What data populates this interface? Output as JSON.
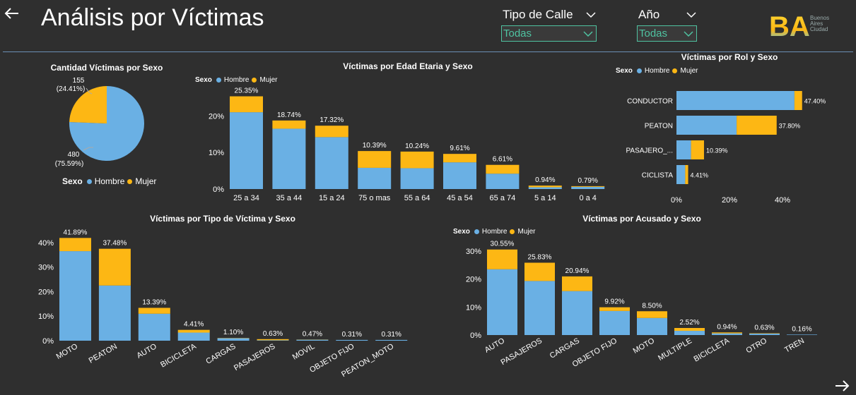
{
  "header": {
    "title": "Análisis por Víctimas",
    "slicers": [
      {
        "label": "Tipo de Calle",
        "value": "Todas"
      },
      {
        "label": "Año",
        "value": "Todas"
      }
    ],
    "logo": {
      "mark": "BA",
      "lines": [
        "Buenos",
        "Aires",
        "Ciudad"
      ]
    }
  },
  "colors": {
    "hombre": "#6ab0e4",
    "mujer": "#fdb714",
    "accent": "#4fc3a1",
    "bg": "#2f2f2f"
  },
  "charts": [
    {
      "id": "pie",
      "type": "pie",
      "title": "Cantidad Víctimas por Sexo",
      "legend_title": "Sexo",
      "legend": [
        "Hombre",
        "Mujer"
      ],
      "slices": [
        {
          "name": "Hombre",
          "value": 480,
          "pct": "75.59%"
        },
        {
          "name": "Mujer",
          "value": 155,
          "pct": "24.41%"
        }
      ]
    },
    {
      "id": "edad",
      "type": "stacked-bar",
      "title": "Víctimas por Edad Etaria y Sexo",
      "legend_title": "Sexo",
      "legend": [
        "Hombre",
        "Mujer"
      ],
      "ymax": 27,
      "yticks": [
        {
          "v": 0,
          "label": "0%"
        },
        {
          "v": 10,
          "label": "10%"
        },
        {
          "v": 20,
          "label": "20%"
        }
      ],
      "categories": [
        "25 a 34",
        "35 a 44",
        "15 a 24",
        "75 o mas",
        "55 a 64",
        "45 a 54",
        "65 a 74",
        "5 a 14",
        "0 a 4"
      ],
      "hombre": [
        21.0,
        16.5,
        14.2,
        5.8,
        5.7,
        7.3,
        4.2,
        0.5,
        0.6
      ],
      "mujer": [
        4.35,
        2.24,
        3.12,
        4.59,
        4.54,
        2.31,
        2.41,
        0.44,
        0.19
      ],
      "labels": [
        "25.35%",
        "18.74%",
        "17.32%",
        "10.39%",
        "10.24%",
        "9.61%",
        "6.61%",
        "0.94%",
        "0.79%"
      ]
    },
    {
      "id": "rol",
      "type": "stacked-hbar",
      "title": "Víctimas por Rol y Sexo",
      "legend_title": "Sexo",
      "legend": [
        "Hombre",
        "Mujer"
      ],
      "xmax": 52,
      "xticks": [
        {
          "v": 0,
          "label": "0%"
        },
        {
          "v": 20,
          "label": "20%"
        },
        {
          "v": 40,
          "label": "40%"
        }
      ],
      "categories": [
        "CONDUCTOR",
        "PEATON",
        "PASAJERO_...",
        "CICLISTA"
      ],
      "hombre": [
        44.5,
        22.7,
        5.5,
        3.3
      ],
      "mujer": [
        2.9,
        15.1,
        4.89,
        1.11
      ],
      "labels": [
        "47.40%",
        "37.80%",
        "10.39%",
        "4.41%"
      ]
    },
    {
      "id": "tipo",
      "type": "stacked-bar",
      "title": "Víctimas por Tipo de Víctima y Sexo",
      "ymax": 44,
      "yticks": [
        {
          "v": 0,
          "label": "0%"
        },
        {
          "v": 10,
          "label": "10%"
        },
        {
          "v": 20,
          "label": "20%"
        },
        {
          "v": 30,
          "label": "30%"
        },
        {
          "v": 40,
          "label": "40%"
        }
      ],
      "categories": [
        "MOTO",
        "PEATON",
        "AUTO",
        "BICICLETA",
        "CARGAS",
        "PASAJEROS",
        "MOVIL",
        "OBJETO FIJO",
        "PEATON_MOTO"
      ],
      "hombre": [
        36.5,
        22.5,
        11.0,
        3.3,
        1.0,
        0.2,
        0.4,
        0.31,
        0.31
      ],
      "mujer": [
        5.39,
        14.98,
        2.39,
        1.11,
        0.1,
        0.43,
        0.07,
        0,
        0
      ],
      "labels": [
        "41.89%",
        "37.48%",
        "13.39%",
        "4.41%",
        "1.10%",
        "0.63%",
        "0.47%",
        "0.31%",
        "0.31%"
      ]
    },
    {
      "id": "acusado",
      "type": "stacked-bar",
      "title": "Víctimas por Acusado y Sexo",
      "legend_title": "Sexo",
      "legend": [
        "Hombre",
        "Mujer"
      ],
      "ymax": 33,
      "yticks": [
        {
          "v": 0,
          "label": "0%"
        },
        {
          "v": 10,
          "label": "10%"
        },
        {
          "v": 20,
          "label": "20%"
        },
        {
          "v": 30,
          "label": "30%"
        }
      ],
      "categories": [
        "AUTO",
        "PASAJEROS",
        "CARGAS",
        "OBJETO FIJO",
        "MOTO",
        "MULTIPLE",
        "BICICLETA",
        "OTRO",
        "TREN"
      ],
      "hombre": [
        23.5,
        19.3,
        15.7,
        8.6,
        6.1,
        1.5,
        0.6,
        0.5,
        0.16
      ],
      "mujer": [
        7.05,
        6.53,
        5.24,
        1.32,
        2.4,
        1.02,
        0.34,
        0.13,
        0
      ],
      "labels": [
        "30.55%",
        "25.83%",
        "20.94%",
        "9.92%",
        "8.50%",
        "2.52%",
        "0.94%",
        "0.63%",
        "0.16%"
      ]
    }
  ]
}
